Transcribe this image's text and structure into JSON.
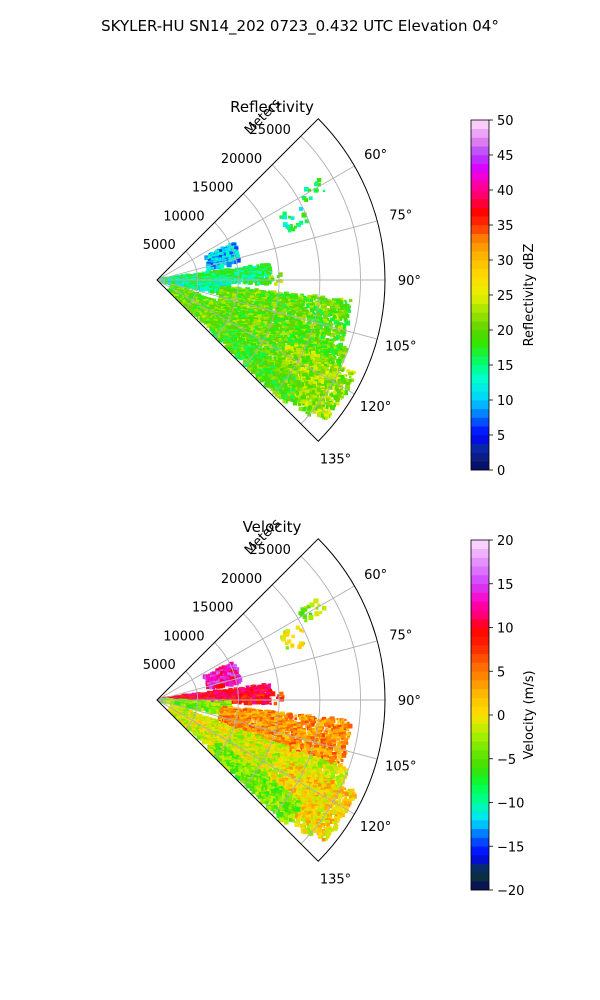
{
  "figure": {
    "suptitle": "SKYLER-HU  SN14_202  0723_0.432 UTC Elevation 04°"
  },
  "chart_data": [
    {
      "type": "heatmap",
      "projection": "polar-sector",
      "title": "Reflectivity",
      "range_axis_label": "Meters",
      "range_ticks": [
        5000,
        10000,
        15000,
        20000,
        25000
      ],
      "range_tick_labels": [
        "5000",
        "10000",
        "15000",
        "20000",
        "25000"
      ],
      "range_max": 28000,
      "azimuth_range_deg": [
        45,
        135
      ],
      "azimuth_ticks_deg": [
        60,
        75,
        90,
        105,
        120,
        135
      ],
      "azimuth_tick_labels": [
        "60°",
        "75°",
        "90°",
        "105°",
        "120°",
        "135°"
      ],
      "grid": true,
      "colorbar": {
        "label": "Reflectivity dBZ",
        "vmin": 0,
        "vmax": 50,
        "ticks": [
          0,
          5,
          10,
          15,
          20,
          25,
          30,
          35,
          40,
          45,
          50
        ],
        "tick_labels": [
          "0",
          "5",
          "10",
          "15",
          "20",
          "25",
          "30",
          "35",
          "40",
          "45",
          "50"
        ],
        "stops": [
          [
            0,
            "#0a0a5a"
          ],
          [
            3,
            "#0a2aa0"
          ],
          [
            5,
            "#0000ff"
          ],
          [
            8,
            "#0080ff"
          ],
          [
            10,
            "#00d0ff"
          ],
          [
            13,
            "#00ffd0"
          ],
          [
            15,
            "#00ff80"
          ],
          [
            18,
            "#30e800"
          ],
          [
            20,
            "#5cd400"
          ],
          [
            22,
            "#90e000"
          ],
          [
            25,
            "#e8f000"
          ],
          [
            28,
            "#ffd800"
          ],
          [
            31,
            "#ffb000"
          ],
          [
            33,
            "#ff8000"
          ],
          [
            35,
            "#ff3000"
          ],
          [
            37,
            "#ff0000"
          ],
          [
            39,
            "#ff0060"
          ],
          [
            41,
            "#ff00b0"
          ],
          [
            43,
            "#e000ff"
          ],
          [
            45,
            "#b040ff"
          ],
          [
            47,
            "#e080f0"
          ],
          [
            50,
            "#ffe0ff"
          ]
        ]
      },
      "echo_regions": [
        {
          "az": [
            58,
            62
          ],
          "r": [
            20500,
            23500
          ],
          "value": 16,
          "density": 0.25
        },
        {
          "az": [
            62,
            70
          ],
          "r": [
            17000,
            20000
          ],
          "value": 15,
          "density": 0.2
        },
        {
          "az": [
            64,
            78
          ],
          "r": [
            6500,
            10500
          ],
          "value": 10,
          "density": 0.55
        },
        {
          "az": [
            82,
            92
          ],
          "r": [
            500,
            14000
          ],
          "value": 16,
          "density": 0.8
        },
        {
          "az": [
            92,
            102
          ],
          "r": [
            500,
            9000
          ],
          "value": 14,
          "density": 0.75
        },
        {
          "az": [
            96,
            112
          ],
          "r": [
            8000,
            24000
          ],
          "value": 20,
          "density": 0.7
        },
        {
          "az": [
            110,
            132
          ],
          "r": [
            2000,
            25000
          ],
          "value": 20,
          "density": 0.85
        },
        {
          "az": [
            115,
            130
          ],
          "r": [
            18000,
            27000
          ],
          "value": 22,
          "density": 0.75
        },
        {
          "az": [
            125,
            134
          ],
          "r": [
            9000,
            22000
          ],
          "value": 19,
          "density": 0.8
        },
        {
          "az": [
            86,
            92
          ],
          "r": [
            14000,
            15500
          ],
          "value": 20,
          "density": 0.2
        }
      ]
    },
    {
      "type": "heatmap",
      "projection": "polar-sector",
      "title": "Velocity",
      "range_axis_label": "Meters",
      "range_ticks": [
        5000,
        10000,
        15000,
        20000,
        25000
      ],
      "range_tick_labels": [
        "5000",
        "10000",
        "15000",
        "20000",
        "25000"
      ],
      "range_max": 28000,
      "azimuth_range_deg": [
        45,
        135
      ],
      "azimuth_ticks_deg": [
        60,
        75,
        90,
        105,
        120,
        135
      ],
      "azimuth_tick_labels": [
        "60°",
        "75°",
        "90°",
        "105°",
        "120°",
        "135°"
      ],
      "grid": true,
      "colorbar": {
        "label": "Velocity (m/s)",
        "vmin": -20,
        "vmax": 20,
        "ticks": [
          -20,
          -15,
          -10,
          -5,
          0,
          5,
          10,
          15,
          20
        ],
        "tick_labels": [
          "−20",
          "−15",
          "−10",
          "−5",
          "0",
          "5",
          "10",
          "15",
          "20"
        ],
        "stops": [
          [
            -20,
            "#0a0a5a"
          ],
          [
            -18,
            "#0a3a3a"
          ],
          [
            -16,
            "#0000ff"
          ],
          [
            -14,
            "#0060ff"
          ],
          [
            -12,
            "#00e0ff"
          ],
          [
            -10,
            "#00ffa0"
          ],
          [
            -8,
            "#00ff40"
          ],
          [
            -6,
            "#40e000"
          ],
          [
            -4,
            "#70e800"
          ],
          [
            -2,
            "#b0f000"
          ],
          [
            0,
            "#ffe000"
          ],
          [
            2,
            "#ffc000"
          ],
          [
            4,
            "#ff9000"
          ],
          [
            6,
            "#ff6000"
          ],
          [
            8,
            "#ff2000"
          ],
          [
            10,
            "#ff0000"
          ],
          [
            11,
            "#ff0060"
          ],
          [
            13,
            "#ff00c0"
          ],
          [
            15,
            "#d040ff"
          ],
          [
            17,
            "#e080ff"
          ],
          [
            20,
            "#ffe0ff"
          ]
        ]
      },
      "echo_regions": [
        {
          "az": [
            58,
            62
          ],
          "r": [
            20500,
            23500
          ],
          "value": -3,
          "density": 0.25
        },
        {
          "az": [
            62,
            70
          ],
          "r": [
            17000,
            20000
          ],
          "value": -1,
          "density": 0.2
        },
        {
          "az": [
            64,
            78
          ],
          "r": [
            6500,
            10500
          ],
          "value": 13,
          "density": 0.55
        },
        {
          "az": [
            82,
            92
          ],
          "r": [
            500,
            14000
          ],
          "value": 10,
          "density": 0.8
        },
        {
          "az": [
            92,
            102
          ],
          "r": [
            500,
            9000
          ],
          "value": -4,
          "density": 0.75
        },
        {
          "az": [
            96,
            112
          ],
          "r": [
            8000,
            24000
          ],
          "value": 4,
          "density": 0.7
        },
        {
          "az": [
            110,
            132
          ],
          "r": [
            2000,
            25000
          ],
          "value": -1,
          "density": 0.85
        },
        {
          "az": [
            115,
            130
          ],
          "r": [
            18000,
            27000
          ],
          "value": 1,
          "density": 0.75
        },
        {
          "az": [
            125,
            134
          ],
          "r": [
            9000,
            22000
          ],
          "value": -4,
          "density": 0.8
        },
        {
          "az": [
            86,
            92
          ],
          "r": [
            14000,
            15500
          ],
          "value": 7,
          "density": 0.2
        }
      ]
    }
  ]
}
